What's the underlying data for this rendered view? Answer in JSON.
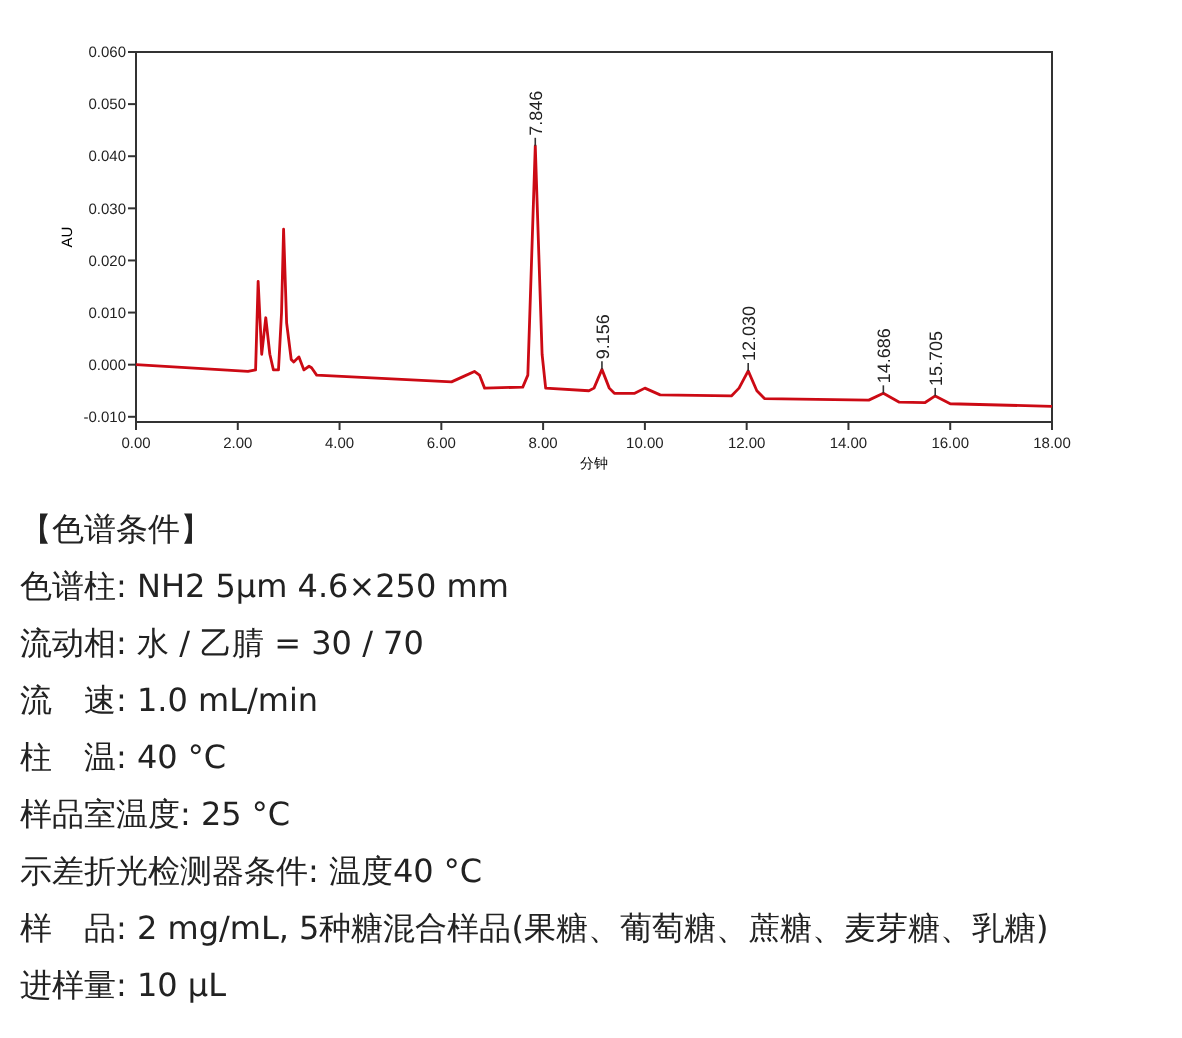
{
  "chart_data": {
    "type": "line",
    "xlabel": "分钟",
    "ylabel": "AU",
    "xlim": [
      0,
      18
    ],
    "ylim": [
      -0.011,
      0.06
    ],
    "xticks": [
      {
        "value": 0,
        "label": "0.00"
      },
      {
        "value": 2,
        "label": "2.00"
      },
      {
        "value": 4,
        "label": "4.00"
      },
      {
        "value": 6,
        "label": "6.00"
      },
      {
        "value": 8,
        "label": "8.00"
      },
      {
        "value": 10,
        "label": "10.00"
      },
      {
        "value": 12,
        "label": "12.00"
      },
      {
        "value": 14,
        "label": "14.00"
      },
      {
        "value": 16,
        "label": "16.00"
      },
      {
        "value": 18,
        "label": "18.00"
      }
    ],
    "yticks": [
      {
        "value": -0.01,
        "label": "-0.010"
      },
      {
        "value": 0,
        "label": "0.000"
      },
      {
        "value": 0.01,
        "label": "0.010"
      },
      {
        "value": 0.02,
        "label": "0.020"
      },
      {
        "value": 0.03,
        "label": "0.030"
      },
      {
        "value": 0.04,
        "label": "0.040"
      },
      {
        "value": 0.05,
        "label": "0.050"
      },
      {
        "value": 0.06,
        "label": "0.060"
      }
    ],
    "grid": false,
    "marker": "none",
    "line_style": "solid",
    "series": [
      {
        "color": "#cc0a14",
        "x": [
          0,
          2.2,
          2.35,
          2.4,
          2.47,
          2.55,
          2.63,
          2.7,
          2.8,
          2.86,
          2.9,
          2.96,
          3.05,
          3.1,
          3.2,
          3.3,
          3.4,
          3.45,
          3.55,
          6.2,
          6.45,
          6.65,
          6.75,
          6.85,
          7.6,
          7.7,
          7.846,
          7.98,
          8.05,
          8.9,
          9.0,
          9.156,
          9.3,
          9.4,
          9.8,
          10.0,
          10.3,
          11.7,
          11.85,
          12.03,
          12.2,
          12.35,
          14.4,
          14.686,
          15.0,
          15.5,
          15.705,
          16.0,
          18
        ],
        "values": [
          0,
          -0.0013,
          -0.001,
          0.016,
          0.002,
          0.009,
          0.002,
          -0.001,
          -0.001,
          0.01,
          0.026,
          0.008,
          0.001,
          0.0005,
          0.0015,
          -0.001,
          -0.0003,
          -0.0006,
          -0.002,
          -0.0033,
          -0.0022,
          -0.0013,
          -0.002,
          -0.0045,
          -0.0043,
          -0.002,
          0.042,
          0.002,
          -0.0045,
          -0.005,
          -0.0045,
          -0.0009,
          -0.0045,
          -0.0055,
          -0.0055,
          -0.0045,
          -0.0058,
          -0.006,
          -0.0045,
          -0.0012,
          -0.005,
          -0.0065,
          -0.0068,
          -0.0055,
          -0.0072,
          -0.0073,
          -0.006,
          -0.0075,
          -0.008
        ]
      }
    ],
    "annotations": [
      {
        "text": "7.846",
        "x": 7.846,
        "y": 0.042
      },
      {
        "text": "9.156",
        "x": 9.156,
        "y": -0.0009
      },
      {
        "text": "12.030",
        "x": 12.03,
        "y": -0.0012
      },
      {
        "text": "14.686",
        "x": 14.686,
        "y": -0.0055
      },
      {
        "text": "15.705",
        "x": 15.705,
        "y": -0.006
      },
      "【色谱条件】",
      "色谱柱: NH2 5μm  4.6×250 mm",
      "流动相: 水 / 乙腈 = 30 / 70",
      "流　速: 1.0 mL/min",
      "柱　温: 40 °C",
      "样品室温度: 25 °C",
      "示差折光检测器条件: 温度40 °C",
      "样　品: 2 mg/mL, 5种糖混合样品(果糖、葡萄糖、蔗糖、麦芽糖、乳糖)",
      "进样量: 10 µL"
    ]
  }
}
